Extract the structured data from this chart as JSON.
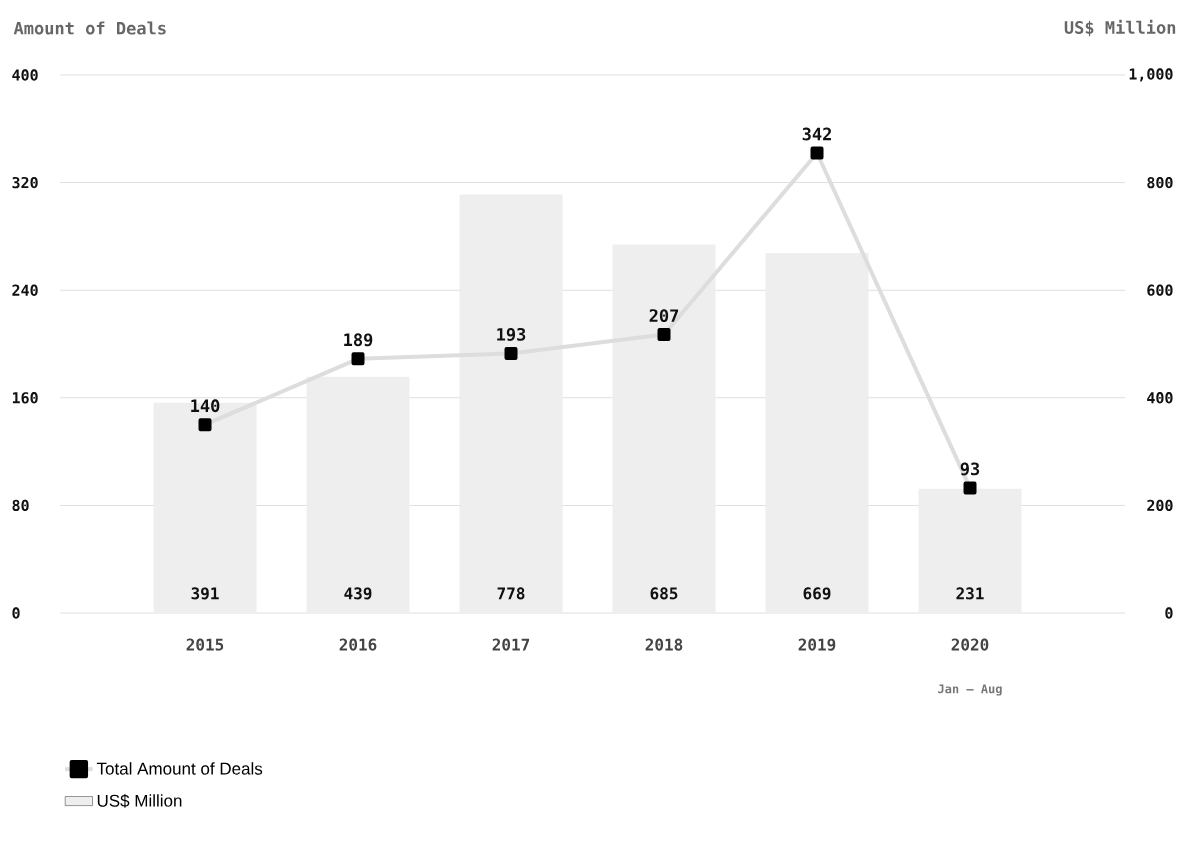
{
  "chart_data": {
    "type": "bar",
    "ylabel": "Amount of Deals",
    "y2label": "US$ Million",
    "categories": [
      "2015",
      "2016",
      "2017",
      "2018",
      "2019",
      "2020"
    ],
    "annotations": [
      "Jan – Aug"
    ],
    "series": [
      {
        "name": "Total Amount of Deals",
        "type": "line",
        "color": "#dddddd",
        "values": [
          140,
          189,
          193,
          207,
          342,
          93
        ]
      },
      {
        "name": "US$ Million",
        "axis": "y2",
        "color": "#eeeeee",
        "values": [
          391,
          439,
          778,
          685,
          669,
          231
        ]
      }
    ],
    "ylim": [
      0,
      400
    ],
    "yticks": [
      0,
      80,
      160,
      240,
      320,
      400
    ],
    "y2lim": [
      0,
      1000
    ],
    "y2ticks": [
      0,
      200,
      400,
      600,
      800,
      {
        "value": 1000,
        "label": "1,000"
      }
    ],
    "grid": "y",
    "legend": "bottom left",
    "marker": "square",
    "data_labels": true
  }
}
